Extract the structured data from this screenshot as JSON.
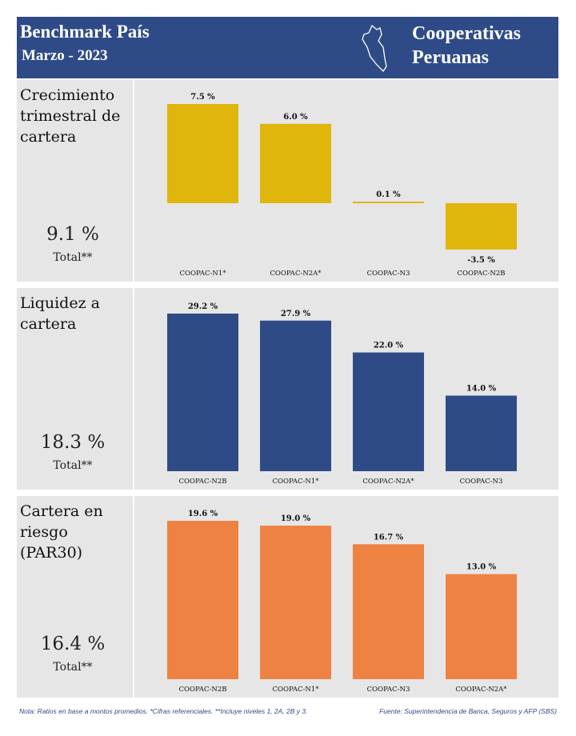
{
  "header": {
    "title": "Benchmark País",
    "subtitle": "Marzo - 2023",
    "right_line1": "Cooperativas",
    "right_line2": "Peruanas",
    "icon": "peru-map-icon",
    "color": "#2f4b87"
  },
  "panels": [
    {
      "title": "Crecimiento trimestral de cartera",
      "total_value": "9.1 %",
      "total_label": "Total**"
    },
    {
      "title": "Liquidez a cartera",
      "total_value": "18.3 %",
      "total_label": "Total**"
    },
    {
      "title": "Cartera en riesgo (PAR30)",
      "total_value": "16.4 %",
      "total_label": "Total**"
    }
  ],
  "chart_data": [
    {
      "type": "bar",
      "categories": [
        "COOPAC-N1*",
        "COOPAC-N2A*",
        "COOPAC-N3",
        "COOPAC-N2B"
      ],
      "values": [
        7.5,
        6.0,
        0.1,
        -3.5
      ],
      "labels": [
        "7.5 %",
        "6.0 %",
        "0.1 %",
        "-3.5 %"
      ],
      "color": "#e0b50c"
    },
    {
      "type": "bar",
      "categories": [
        "COOPAC-N2B",
        "COOPAC-N1*",
        "COOPAC-N2A*",
        "COOPAC-N3"
      ],
      "values": [
        29.2,
        27.9,
        22.0,
        14.0
      ],
      "labels": [
        "29.2 %",
        "27.9 %",
        "22.0 %",
        "14.0 %"
      ],
      "color": "#2f4b87"
    },
    {
      "type": "bar",
      "categories": [
        "COOPAC-N2B",
        "COOPAC-N1*",
        "COOPAC-N3",
        "COOPAC-N2A*"
      ],
      "values": [
        19.6,
        19.0,
        16.7,
        13.0
      ],
      "labels": [
        "19.6 %",
        "19.0 %",
        "16.7 %",
        "13.0 %"
      ],
      "color": "#ee8243"
    }
  ],
  "footer": {
    "note": "Nota: Ratios en base a montos promedios. *Cifras referenciales. **Incluye niveles 1, 2A, 2B y 3.",
    "source": "Fuente: Superintendencia de Banca, Seguros y AFP (SBS)"
  }
}
